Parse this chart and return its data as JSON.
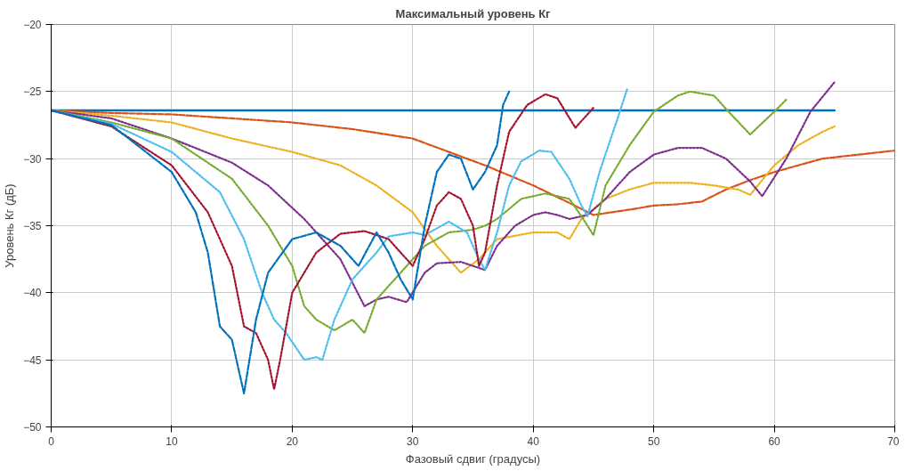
{
  "chart_data": {
    "type": "line",
    "title": "Максимальный уровень Кг",
    "xlabel": "Фазовый сдвиг (градусы)",
    "ylabel": "Уровень Кг (дБ)",
    "xlim": [
      0,
      70
    ],
    "ylim": [
      -50,
      -20
    ],
    "xticks": [
      0,
      10,
      20,
      30,
      40,
      50,
      60,
      70
    ],
    "yticks": [
      -50,
      -45,
      -40,
      -35,
      -30,
      -25,
      -20
    ],
    "grid": true,
    "series": [
      {
        "color": "#0072bd",
        "line_style": "solid",
        "x": [
          0,
          65
        ],
        "values": [
          -26.4,
          -26.4
        ]
      },
      {
        "color": "#d95319",
        "line_style": "dashed",
        "x": [
          0,
          5,
          10,
          15,
          20,
          25,
          30,
          33,
          36,
          40,
          43,
          45,
          48,
          50,
          52,
          54,
          56,
          58,
          60,
          62,
          64,
          66,
          70
        ],
        "values": [
          -26.4,
          -26.6,
          -26.7,
          -27,
          -27.3,
          -27.8,
          -28.5,
          -29.5,
          -30.5,
          -32,
          -33.3,
          -34.2,
          -33.8,
          -33.5,
          -33.4,
          -33.2,
          -32.3,
          -31.6,
          -31,
          -30.5,
          -30,
          -29.8,
          -29.4
        ]
      },
      {
        "color": "#edb120",
        "line_style": "dotted",
        "x": [
          0,
          5,
          10,
          15,
          20,
          24,
          27,
          30,
          32,
          34,
          35.5,
          37,
          40,
          42,
          43,
          44,
          46,
          48,
          50,
          53,
          55,
          57,
          58,
          60,
          62,
          64,
          65
        ],
        "values": [
          -26.4,
          -26.8,
          -27.3,
          -28.5,
          -29.5,
          -30.5,
          -32,
          -34,
          -36.5,
          -38.5,
          -37.5,
          -36,
          -35.5,
          -35.5,
          -36,
          -34.5,
          -33,
          -32.3,
          -31.8,
          -31.8,
          -32,
          -32.3,
          -32.7,
          -30.5,
          -29,
          -28,
          -27.6
        ]
      },
      {
        "color": "#7e2f8e",
        "line_style": "dotted",
        "x": [
          0,
          5,
          10,
          15,
          18,
          21,
          24,
          26,
          27,
          28,
          29.5,
          31,
          32,
          34,
          35,
          36,
          37,
          38.5,
          40,
          41,
          42,
          43,
          44.5,
          46,
          48,
          50,
          52,
          54,
          56,
          58,
          59,
          61,
          63,
          65
        ],
        "values": [
          -26.4,
          -27,
          -28.5,
          -30.3,
          -32,
          -34.5,
          -37.5,
          -41,
          -40.5,
          -40.3,
          -40.7,
          -38.5,
          -37.8,
          -37.7,
          -38,
          -38.3,
          -36.5,
          -35,
          -34.2,
          -34,
          -34.2,
          -34.5,
          -34.2,
          -33,
          -31,
          -29.7,
          -29.2,
          -29.2,
          -30,
          -31.7,
          -32.8,
          -30,
          -26.5,
          -24.3
        ]
      },
      {
        "color": "#77ac30",
        "line_style": "dotted",
        "x": [
          0,
          5,
          10,
          15,
          18,
          20,
          21,
          22,
          23.5,
          25,
          26,
          27,
          29,
          31,
          33,
          35,
          36,
          37,
          39,
          41,
          43,
          44,
          45,
          46,
          48,
          50,
          52,
          53,
          55,
          56,
          58,
          60,
          61
        ],
        "values": [
          -26.4,
          -27.3,
          -28.5,
          -31.5,
          -35,
          -38,
          -41,
          -42,
          -42.8,
          -42,
          -43,
          -40.5,
          -38.5,
          -36.5,
          -35.5,
          -35.3,
          -35,
          -34.5,
          -33,
          -32.6,
          -33,
          -34.3,
          -35.7,
          -32,
          -29,
          -26.5,
          -25.3,
          -25,
          -25.3,
          -26.3,
          -28.2,
          -26.5,
          -25.6
        ]
      },
      {
        "color": "#4dbeee",
        "line_style": "dotted",
        "x": [
          0,
          5,
          10,
          14,
          16,
          17.5,
          18.5,
          19.5,
          21,
          22,
          22.5,
          23.5,
          25,
          27,
          28,
          30,
          31,
          33,
          34.5,
          35.5,
          36,
          37,
          38,
          39,
          40.5,
          41.5,
          43,
          44,
          44.5,
          45.5,
          47,
          47.8
        ],
        "values": [
          -26.4,
          -27.4,
          -29.5,
          -32.5,
          -36,
          -40,
          -42,
          -43,
          -45,
          -44.8,
          -45,
          -42,
          -39,
          -37,
          -35.8,
          -35.5,
          -35.7,
          -34.7,
          -35.5,
          -37.5,
          -38.3,
          -35.5,
          -32,
          -30.2,
          -29.4,
          -29.5,
          -31.5,
          -33.5,
          -34.3,
          -31,
          -27,
          -24.8
        ]
      },
      {
        "color": "#a2142f",
        "line_style": "dotted",
        "x": [
          0,
          5,
          10,
          13,
          15,
          16,
          17,
          18,
          18.5,
          19,
          20,
          22,
          24,
          26,
          28,
          30,
          31,
          32,
          33,
          34,
          35,
          35.5,
          36,
          37,
          38,
          39.5,
          41,
          42,
          43.5,
          45
        ],
        "values": [
          -26.4,
          -27.6,
          -30.5,
          -34,
          -38,
          -42.5,
          -43,
          -45,
          -47.2,
          -45,
          -40,
          -37,
          -35.6,
          -35.4,
          -36,
          -38,
          -36,
          -33.5,
          -32.5,
          -33,
          -35,
          -38,
          -37,
          -32,
          -28,
          -26,
          -25.2,
          -25.5,
          -27.7,
          -26.2
        ]
      },
      {
        "color": "#0072bd",
        "line_style": "dashed",
        "x": [
          0,
          5,
          10,
          12,
          13,
          14,
          15,
          16,
          17,
          18,
          20,
          22,
          24,
          25.5,
          27,
          28,
          29,
          30,
          31,
          32,
          33,
          34,
          35,
          36,
          37,
          37.5,
          38
        ],
        "values": [
          -26.4,
          -27.5,
          -31,
          -34,
          -37,
          -42.5,
          -43.5,
          -47.5,
          -42,
          -38.5,
          -36,
          -35.5,
          -36.5,
          -38,
          -35.5,
          -37,
          -39,
          -40.5,
          -35,
          -31,
          -29.7,
          -30,
          -32.3,
          -31,
          -29,
          -26,
          -25
        ]
      }
    ]
  }
}
